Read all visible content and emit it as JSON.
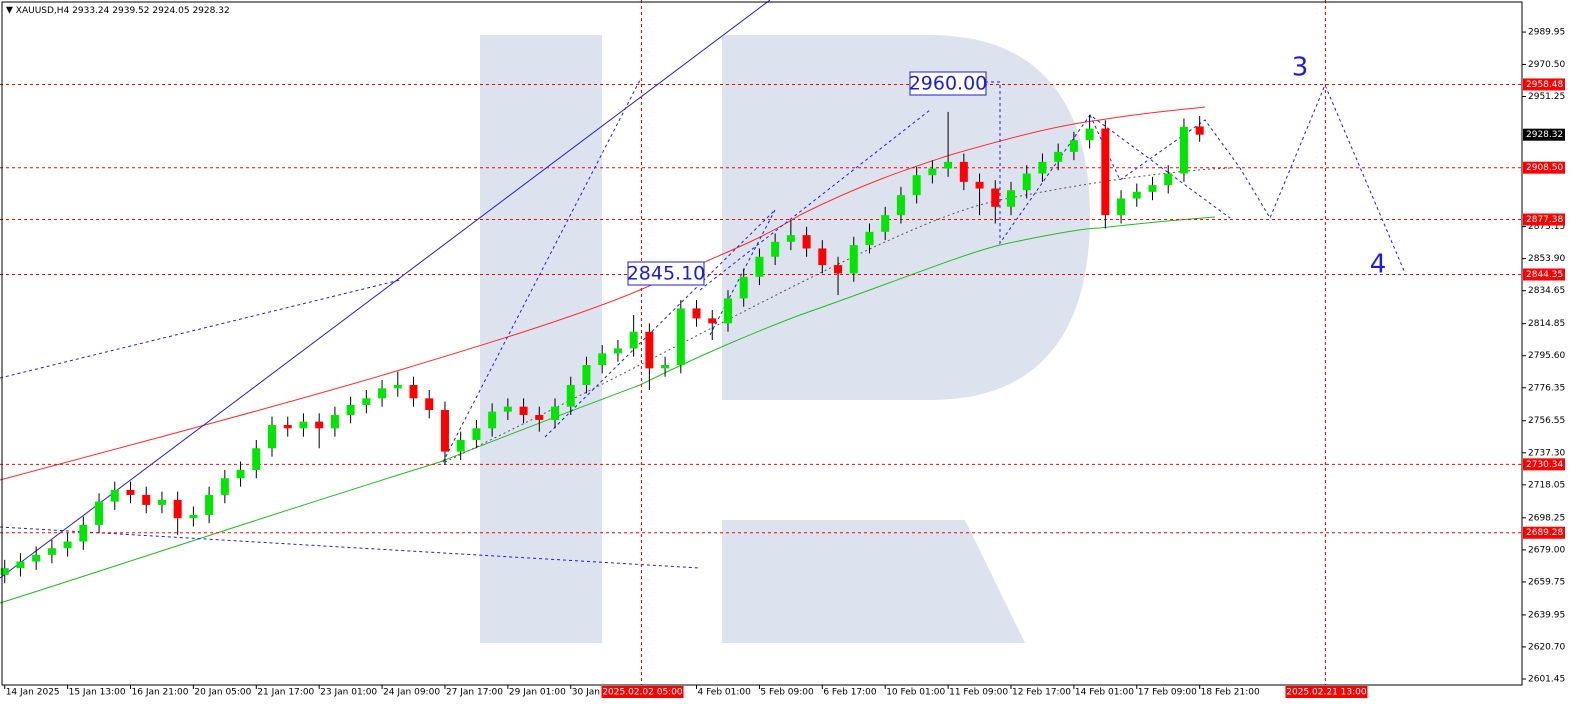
{
  "chart_data": {
    "type": "candlestick",
    "title": "XAUUSD,H4",
    "x": [
      0,
      2,
      4,
      6,
      8,
      10,
      12,
      14,
      16,
      18,
      20,
      22,
      24,
      26,
      28,
      30,
      32,
      34,
      36,
      38,
      40,
      42,
      44,
      46,
      48,
      50,
      52,
      54,
      56,
      58,
      60,
      62,
      64,
      66,
      68,
      70,
      72,
      74,
      76,
      78,
      80,
      82,
      84,
      86,
      88,
      90,
      92,
      94,
      96,
      98,
      100,
      102,
      104,
      106,
      108,
      110,
      112,
      114,
      116,
      118,
      120,
      122,
      124,
      126,
      128,
      130,
      132,
      134,
      136,
      138,
      140,
      142,
      144,
      146,
      148,
      150,
      152
    ],
    "open": [
      2664,
      2668,
      2672,
      2676,
      2680,
      2684,
      2694,
      2708,
      2715,
      2712,
      2706,
      2709,
      2698,
      2700,
      2712,
      2722,
      2727,
      2740,
      2754,
      2752,
      2756,
      2752,
      2760,
      2766,
      2770,
      2776,
      2778,
      2770,
      2763,
      2738,
      2745,
      2752,
      2762,
      2765,
      2760,
      2757,
      2765,
      2778,
      2790,
      2797,
      2800,
      2810,
      2788,
      2790,
      2824,
      2818,
      2815,
      2830,
      2843,
      2855,
      2864,
      2868,
      2860,
      2850,
      2845,
      2862,
      2870,
      2880,
      2892,
      2904,
      2908,
      2912,
      2900,
      2896,
      2885,
      2895,
      2905,
      2912,
      2918,
      2925,
      2932,
      2880,
      2890,
      2894,
      2898,
      2905,
      2933.24
    ],
    "high": [
      2673,
      2677,
      2681,
      2685,
      2689,
      2699,
      2713,
      2720,
      2720,
      2717,
      2714,
      2714,
      2705,
      2717,
      2727,
      2732,
      2745,
      2759,
      2759,
      2761,
      2761,
      2765,
      2771,
      2775,
      2781,
      2786,
      2783,
      2775,
      2768,
      2750,
      2757,
      2767,
      2770,
      2770,
      2765,
      2770,
      2783,
      2795,
      2802,
      2805,
      2820,
      2815,
      2795,
      2829,
      2829,
      2823,
      2835,
      2848,
      2860,
      2869,
      2877,
      2873,
      2865,
      2855,
      2867,
      2875,
      2885,
      2897,
      2909,
      2913,
      2942,
      2917,
      2905,
      2901,
      2900,
      2910,
      2917,
      2923,
      2930,
      2940,
      2937,
      2895,
      2899,
      2903,
      2910,
      2938,
      2939.52
    ],
    "low": [
      2659,
      2663,
      2667,
      2671,
      2675,
      2679,
      2689,
      2703,
      2707,
      2701,
      2701,
      2688,
      2693,
      2695,
      2707,
      2717,
      2722,
      2735,
      2747,
      2747,
      2740,
      2747,
      2755,
      2761,
      2765,
      2771,
      2765,
      2758,
      2730,
      2733,
      2740,
      2747,
      2757,
      2755,
      2750,
      2752,
      2760,
      2773,
      2785,
      2792,
      2795,
      2775,
      2783,
      2785,
      2813,
      2805,
      2810,
      2825,
      2838,
      2850,
      2859,
      2855,
      2845,
      2832,
      2840,
      2857,
      2865,
      2875,
      2887,
      2899,
      2903,
      2895,
      2880,
      2875,
      2880,
      2890,
      2900,
      2907,
      2913,
      2920,
      2872,
      2875,
      2885,
      2889,
      2893,
      2900,
      2924.05
    ],
    "close": [
      2668,
      2672,
      2676,
      2680,
      2684,
      2694,
      2708,
      2715,
      2712,
      2706,
      2709,
      2698,
      2700,
      2712,
      2722,
      2727,
      2740,
      2754,
      2752,
      2756,
      2752,
      2760,
      2766,
      2770,
      2776,
      2778,
      2770,
      2763,
      2738,
      2745,
      2752,
      2762,
      2765,
      2760,
      2757,
      2765,
      2778,
      2790,
      2797,
      2800,
      2810,
      2788,
      2790,
      2824,
      2818,
      2815,
      2830,
      2843,
      2855,
      2864,
      2868,
      2860,
      2850,
      2845,
      2862,
      2870,
      2880,
      2892,
      2904,
      2908,
      2912,
      2900,
      2896,
      2885,
      2895,
      2905,
      2912,
      2918,
      2925,
      2932,
      2880,
      2890,
      2894,
      2898,
      2905,
      2933,
      2928.32
    ],
    "up_color": "#00e600",
    "down_color": "#ff0000",
    "xlim": [
      -0.6,
      193
    ],
    "ylim": [
      2597.85,
      3009.2
    ],
    "xticks": [
      {
        "value": 0,
        "label": "14 Jan 2025"
      },
      {
        "value": 8,
        "label": "15 Jan 13:00"
      },
      {
        "value": 16,
        "label": "16 Jan 21:00"
      },
      {
        "value": 24,
        "label": "20 Jan 05:00"
      },
      {
        "value": 32,
        "label": "21 Jan 17:00"
      },
      {
        "value": 40,
        "label": "23 Jan 01:00"
      },
      {
        "value": 48,
        "label": "24 Jan 09:00"
      },
      {
        "value": 56,
        "label": "27 Jan 17:00"
      },
      {
        "value": 64,
        "label": "29 Jan 01:00"
      },
      {
        "value": 72,
        "label": "30 Jan 09:00"
      },
      {
        "value": 88,
        "label": "4 Feb 01:00"
      },
      {
        "value": 96,
        "label": "5 Feb 09:00"
      },
      {
        "value": 104,
        "label": "6 Feb 17:00"
      },
      {
        "value": 112,
        "label": "10 Feb 01:00"
      },
      {
        "value": 120,
        "label": "11 Feb 09:00"
      },
      {
        "value": 128,
        "label": "12 Feb 17:00"
      },
      {
        "value": 136,
        "label": "14 Feb 01:00"
      },
      {
        "value": 144,
        "label": "17 Feb 09:00"
      },
      {
        "value": 152,
        "label": "18 Feb 21:00"
      }
    ],
    "yticks": [
      2989.95,
      {
        "value": 2970.5,
        "label": "2970.50"
      },
      2951.25,
      2873.15,
      {
        "value": 2853.9,
        "label": "2853.90"
      },
      2834.65,
      2814.85,
      {
        "value": 2795.6,
        "label": "2795.60"
      },
      2776.35,
      2756.55,
      {
        "value": 2737.3,
        "label": "2737.30"
      },
      2718.05,
      2698.25,
      {
        "value": 2679,
        "label": "2679.00"
      },
      2659.75,
      2639.95,
      {
        "value": 2620.7,
        "label": "2620.70"
      },
      2601.45
    ],
    "levels": [
      2958.48,
      {
        "value": 2908.5,
        "label": "2908.50"
      },
      2877.38,
      2844.35,
      2730.34,
      2689.28
    ],
    "level_color": "#ff0000",
    "time_markers": [
      {
        "value": 81,
        "label": "2025.02.02 05:00"
      },
      {
        "value": 168,
        "label": "2025.02.21 13:00"
      }
    ],
    "annotations": [
      "2960.00",
      "2845.10",
      "3",
      "4"
    ]
  }
}
